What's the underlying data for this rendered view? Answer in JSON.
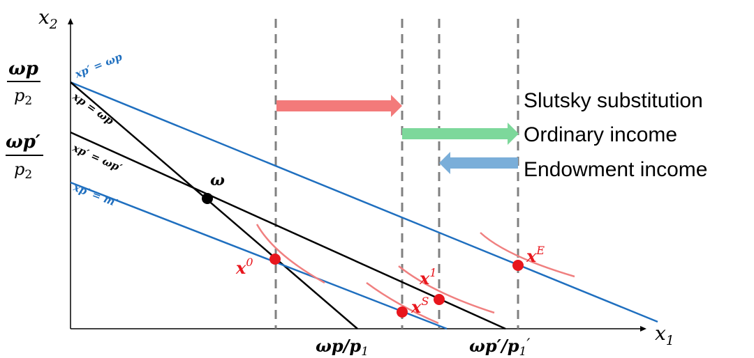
{
  "axes": {
    "x_label_base": "x",
    "x_label_sub": "1",
    "y_label_base": "x",
    "y_label_sub": "2"
  },
  "y_ticks": {
    "top": {
      "numerator": "ωp",
      "denominator_base": "p",
      "denominator_sub": "2"
    },
    "bottom": {
      "numerator": "ωp′",
      "denominator_base": "p",
      "denominator_sub": "2"
    }
  },
  "x_ticks": {
    "left": "ωp/p",
    "left_sub": "1",
    "right": "ωp′/p",
    "right_sub": "1",
    "right_prime": "′"
  },
  "line_labels": {
    "blue_top": "xp′ = ωp",
    "black_steep": "xp = ωp",
    "black_flat": "xp′ = ωp′",
    "blue_bottom": "xp′ = m′"
  },
  "point_labels": {
    "omega": "ω",
    "x0_base": "x",
    "x0_sup": "0",
    "xs_base": "x",
    "xs_sup": "S",
    "x1_base": "x",
    "x1_sup": "1",
    "xe_base": "x",
    "xe_sup": "E"
  },
  "effects": {
    "slutsky": "Slutsky substitution",
    "ordinary": "Ordinary income",
    "endowment": "Endowment income"
  },
  "colors": {
    "blue_line": "#1f6fbf",
    "black_line": "#000000",
    "indifference": "#f08080",
    "point_red": "#e8161d",
    "slutsky_arrow": "#f37a7a",
    "ordinary_arrow": "#7dd89b",
    "endowment_arrow": "#7aaed9",
    "dashed": "#808080"
  }
}
